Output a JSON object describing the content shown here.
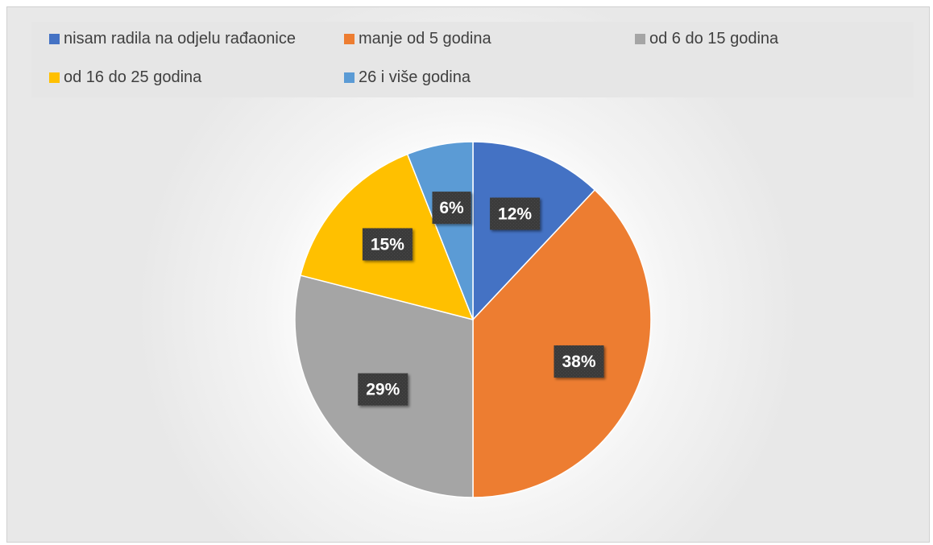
{
  "chart_data": {
    "type": "pie",
    "categories": [
      "nisam radila na odjelu rađaonice",
      "manje od 5 godina",
      "od 6 do 15 godina",
      "od 16 do 25 godina",
      "26 i više godina"
    ],
    "values": [
      12,
      38,
      29,
      15,
      6
    ],
    "labels": [
      "12%",
      "38%",
      "29%",
      "15%",
      "6%"
    ],
    "colors": [
      "#4472C4",
      "#ED7D31",
      "#A5A5A5",
      "#FFC000",
      "#5B9BD5"
    ],
    "legend_position": "top",
    "label_style": "dark-box-white-text"
  }
}
